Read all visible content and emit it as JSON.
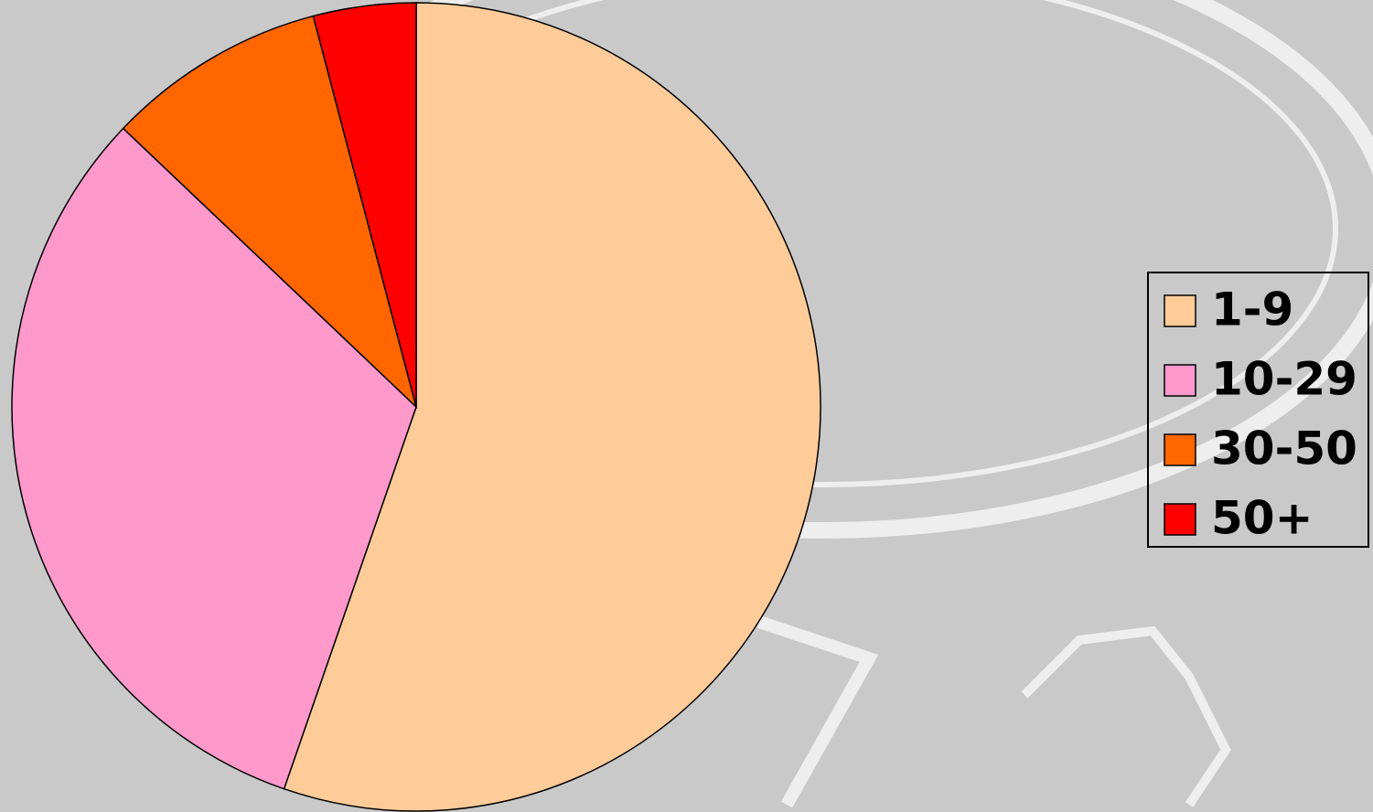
{
  "chart_data": {
    "type": "pie",
    "categories": [
      "1-9",
      "10-29",
      "30-50",
      "50+"
    ],
    "values": [
      55.3,
      31.8,
      8.8,
      4.1
    ],
    "colors": [
      "#FFCC99",
      "#FF99CC",
      "#FF6600",
      "#FF0000"
    ],
    "legend": "right"
  }
}
